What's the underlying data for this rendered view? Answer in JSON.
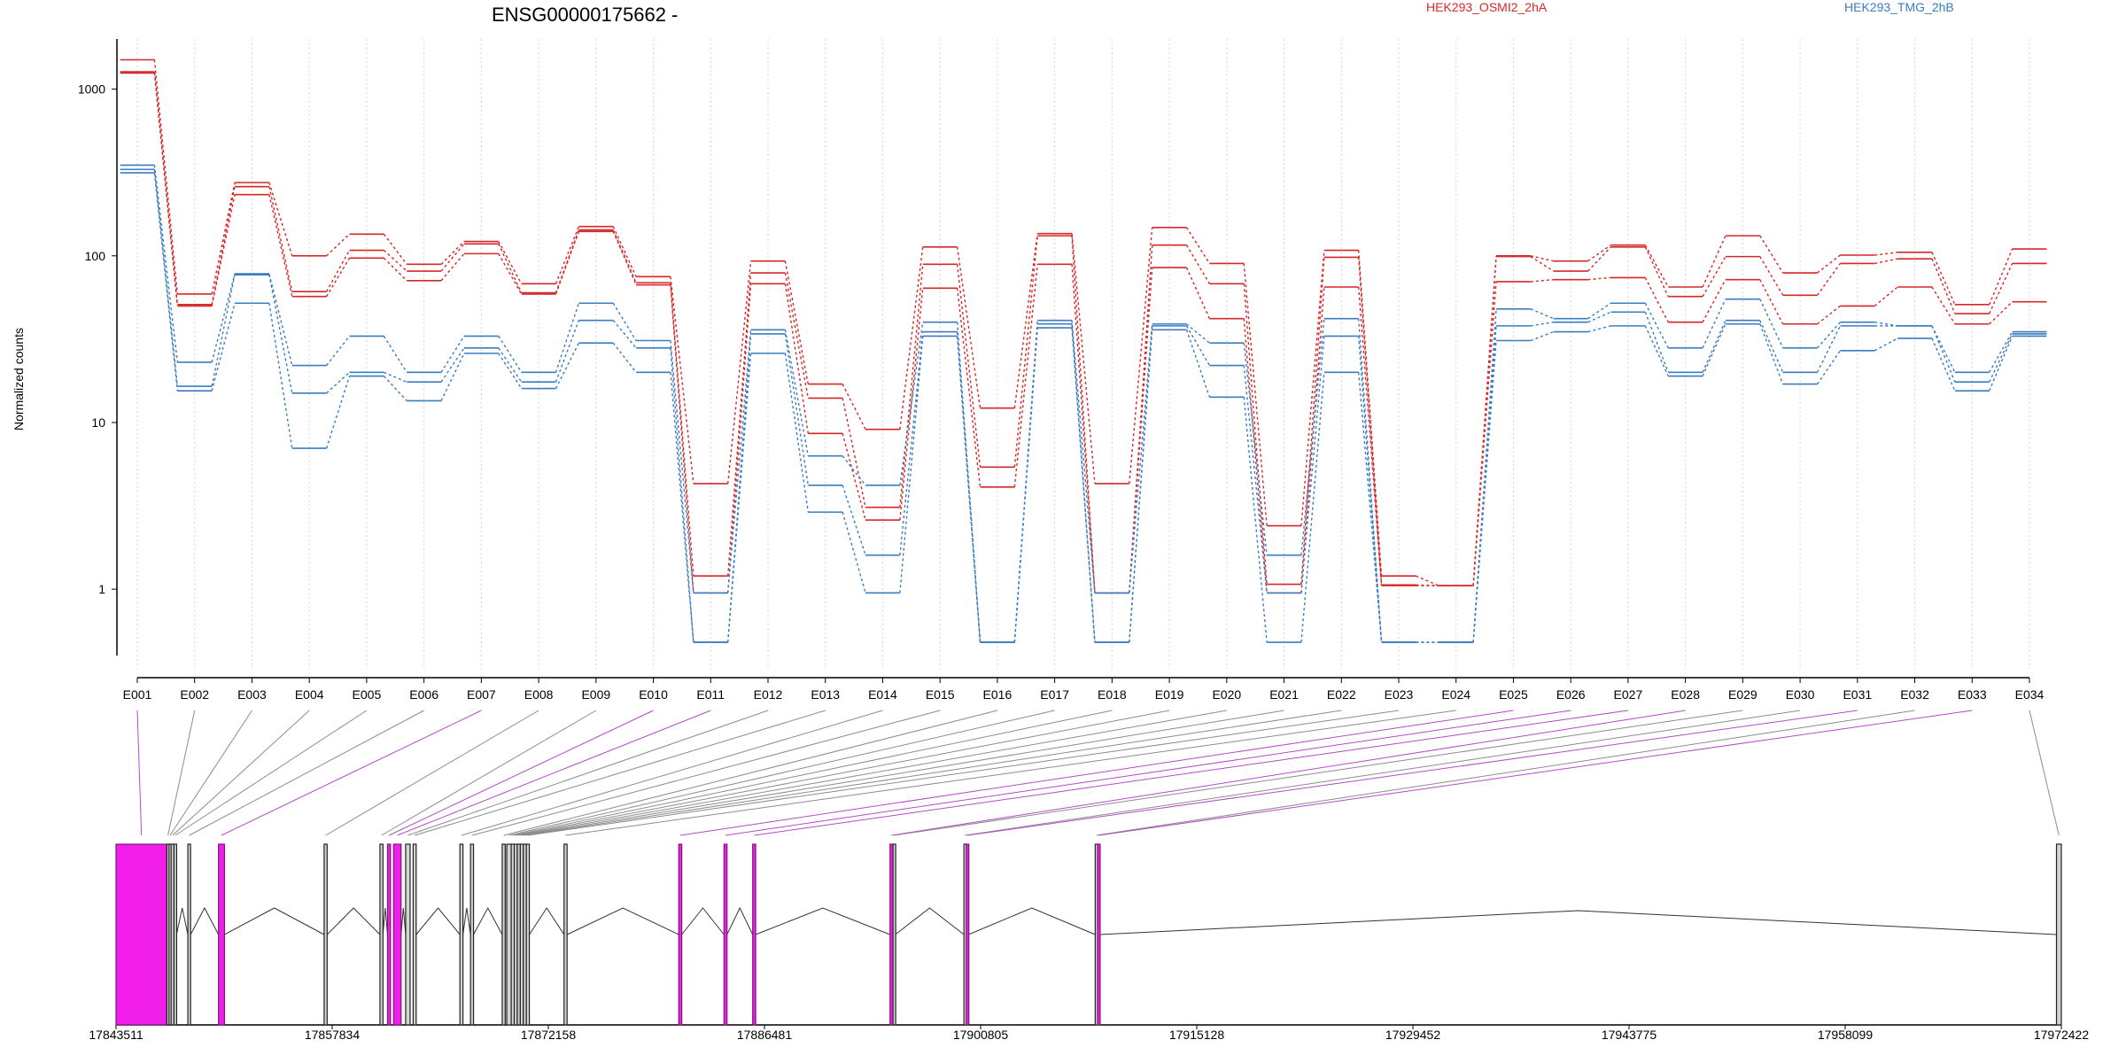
{
  "title": "ENSG00000175662 -",
  "legend": [
    {
      "name": "HEK293_OSMI2_2hA",
      "color": "#d62728"
    },
    {
      "name": "HEK293_TMG_2hB",
      "color": "#3a7dbf"
    }
  ],
  "chart_data": [
    {
      "type": "line",
      "title": "ENSG00000175662 -",
      "ylabel": "Normalized counts",
      "xlabel": "",
      "yscale": "log",
      "ylim": [
        0.4,
        2000
      ],
      "yticks": [
        1,
        10,
        100,
        1000
      ],
      "ytick_labels": [
        "1",
        "10",
        "100",
        "1000"
      ],
      "grid": "vertical dotted",
      "categories": [
        "E001",
        "E002",
        "E003",
        "E004",
        "E005",
        "E006",
        "E007",
        "E008",
        "E009",
        "E010",
        "E011",
        "E012",
        "E013",
        "E014",
        "E015",
        "E016",
        "E017",
        "E018",
        "E019",
        "E020",
        "E021",
        "E022",
        "E023",
        "E024",
        "E025",
        "E026",
        "E027",
        "E028",
        "E029",
        "E030",
        "E031",
        "E032",
        "E033",
        "E034"
      ],
      "series": [
        {
          "name": "HEK293_OSMI2_2hA",
          "group": 0,
          "values": [
            1500,
            59,
            275,
            100,
            135,
            89,
            122,
            68,
            150,
            75,
            4.3,
            93,
            17,
            9.1,
            113,
            12.2,
            136,
            4.3,
            148,
            90,
            2.4,
            108,
            1.2,
            1.05,
            100,
            93,
            116,
            65,
            132,
            79,
            101,
            105,
            51,
            110
          ]
        },
        {
          "name": "HEK293_OSMI2_2hA",
          "group": 0,
          "values": [
            1270,
            51,
            260,
            61,
            108,
            81,
            118,
            60,
            143,
            69,
            1.2,
            79,
            14,
            3.1,
            89,
            5.4,
            132,
            0.95,
            116,
            68,
            1.07,
            98,
            1.06,
            1.05,
            99,
            81,
            113,
            57,
            99,
            58,
            90,
            96,
            45,
            90
          ]
        },
        {
          "name": "HEK293_OSMI2_2hA",
          "group": 0,
          "values": [
            1250,
            50,
            233,
            57,
            97,
            71,
            103,
            59,
            140,
            67,
            0.95,
            68,
            8.6,
            2.6,
            64,
            4.1,
            89,
            0.95,
            85,
            42,
            0.95,
            65,
            1.05,
            1.05,
            70,
            72,
            74,
            40,
            72,
            39,
            50,
            65,
            39,
            53
          ]
        },
        {
          "name": "HEK293_TMG_2hB",
          "group": 1,
          "values": [
            350,
            23,
            78,
            22,
            33,
            20,
            33,
            20,
            52,
            31,
            0.95,
            36,
            6.3,
            4.2,
            40,
            0.48,
            41,
            0.95,
            39,
            30,
            1.6,
            42,
            0.48,
            0.48,
            48,
            42,
            52,
            28,
            55,
            28,
            40,
            38,
            20,
            35
          ]
        },
        {
          "name": "HEK293_TMG_2hB",
          "group": 1,
          "values": [
            330,
            16.5,
            77,
            15,
            20,
            17.5,
            28,
            17.5,
            41,
            28,
            0.48,
            34,
            4.2,
            1.6,
            35,
            0.48,
            39,
            0.48,
            38,
            22,
            0.95,
            33,
            0.48,
            0.48,
            38,
            40,
            46,
            20,
            41,
            20,
            38,
            38,
            17.5,
            34
          ]
        },
        {
          "name": "HEK293_TMG_2hB",
          "group": 1,
          "values": [
            315,
            15.5,
            52,
            7,
            19,
            13.5,
            26,
            16,
            30,
            20,
            0.48,
            26,
            2.9,
            0.95,
            33,
            0.48,
            37,
            0.48,
            36,
            14.2,
            0.48,
            20,
            0.48,
            0.48,
            31,
            35,
            38,
            19,
            39,
            17,
            27,
            32,
            15.5,
            33
          ]
        }
      ]
    },
    {
      "type": "gene_model",
      "xlim": [
        17843511,
        17972422
      ],
      "xticks": [
        17843511,
        17857834,
        17872158,
        17886481,
        17900805,
        17915128,
        17929452,
        17943775,
        17958099,
        17972422
      ],
      "xtick_labels": [
        "17843511",
        "17857834",
        "17872158",
        "17886481",
        "17900805",
        "17915128",
        "17929452",
        "17943775",
        "17958099",
        "17972422"
      ],
      "exons": [
        {
          "id": "E001",
          "start": 17843511,
          "end": 17846880,
          "highlight": true
        },
        {
          "id": "E002",
          "start": 17846880,
          "end": 17847020,
          "highlight": false
        },
        {
          "id": "E003",
          "start": 17847020,
          "end": 17847160,
          "highlight": false
        },
        {
          "id": "E004",
          "start": 17847160,
          "end": 17847350,
          "highlight": false
        },
        {
          "id": "E005",
          "start": 17847350,
          "end": 17847520,
          "highlight": false
        },
        {
          "id": "E006",
          "start": 17848270,
          "end": 17848450,
          "highlight": false
        },
        {
          "id": "E007",
          "start": 17850300,
          "end": 17850700,
          "highlight": true
        },
        {
          "id": "E008",
          "start": 17857300,
          "end": 17857500,
          "highlight": false
        },
        {
          "id": "E009",
          "start": 17861000,
          "end": 17861200,
          "highlight": false
        },
        {
          "id": "E010",
          "start": 17861500,
          "end": 17861700,
          "highlight": true
        },
        {
          "id": "E011",
          "start": 17861900,
          "end": 17862400,
          "highlight": true
        },
        {
          "id": "E012",
          "start": 17862700,
          "end": 17863000,
          "highlight": false
        },
        {
          "id": "E013",
          "start": 17863200,
          "end": 17863400,
          "highlight": false
        },
        {
          "id": "E014",
          "start": 17866300,
          "end": 17866500,
          "highlight": false
        },
        {
          "id": "E015",
          "start": 17867000,
          "end": 17867200,
          "highlight": false
        },
        {
          "id": "E016",
          "start": 17869100,
          "end": 17869300,
          "highlight": false
        },
        {
          "id": "E017",
          "start": 17869400,
          "end": 17869700,
          "highlight": false
        },
        {
          "id": "E018",
          "start": 17869700,
          "end": 17869900,
          "highlight": false
        },
        {
          "id": "E019",
          "start": 17869900,
          "end": 17870100,
          "highlight": false
        },
        {
          "id": "E020",
          "start": 17870100,
          "end": 17870300,
          "highlight": false
        },
        {
          "id": "E021",
          "start": 17870300,
          "end": 17870500,
          "highlight": false
        },
        {
          "id": "E022",
          "start": 17870500,
          "end": 17870700,
          "highlight": false
        },
        {
          "id": "E023",
          "start": 17870700,
          "end": 17870900,
          "highlight": false
        },
        {
          "id": "E024",
          "start": 17873200,
          "end": 17873400,
          "highlight": false
        },
        {
          "id": "E025",
          "start": 17880800,
          "end": 17881000,
          "highlight": true
        },
        {
          "id": "E026",
          "start": 17883800,
          "end": 17884000,
          "highlight": true
        },
        {
          "id": "E027",
          "start": 17885700,
          "end": 17885900,
          "highlight": true
        },
        {
          "id": "E028",
          "start": 17894800,
          "end": 17895000,
          "highlight": true
        },
        {
          "id": "E029",
          "start": 17895000,
          "end": 17895150,
          "highlight": false
        },
        {
          "id": "E030",
          "start": 17899700,
          "end": 17899850,
          "highlight": false
        },
        {
          "id": "E031",
          "start": 17899850,
          "end": 17900000,
          "highlight": true
        },
        {
          "id": "E032",
          "start": 17908400,
          "end": 17908550,
          "highlight": false
        },
        {
          "id": "E033",
          "start": 17908550,
          "end": 17908700,
          "highlight": true
        },
        {
          "id": "E034",
          "start": 17972100,
          "end": 17972422,
          "highlight": false
        }
      ]
    }
  ]
}
